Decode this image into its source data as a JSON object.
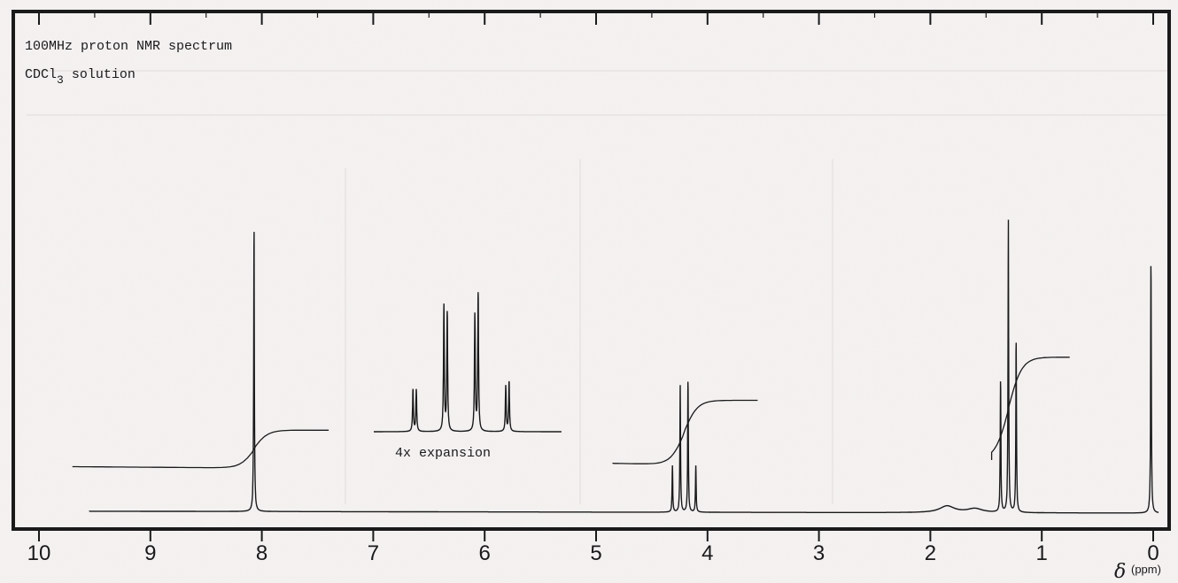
{
  "chart_data": {
    "type": "line",
    "title_line1": "100MHz proton NMR spectrum",
    "title_line2_prefix": "CDCl",
    "title_line2_subscript": "3",
    "title_line2_suffix": " solution",
    "inset_label": "4x expansion",
    "xlabel_symbol": "δ",
    "xlabel_unit": "(ppm)",
    "x_reversed": true,
    "xlim": [
      10,
      0
    ],
    "x_ticks": [
      10,
      9,
      8,
      7,
      6,
      5,
      4,
      3,
      2,
      1,
      0
    ],
    "x_tick_labels": [
      "10",
      "9",
      "8",
      "7",
      "6",
      "5",
      "4",
      "3",
      "2",
      "1",
      "0"
    ],
    "grid": false,
    "peaks": [
      {
        "shift": 8.07,
        "height": 0.86,
        "multiplicity": "singlet"
      },
      {
        "shift": 4.315,
        "height": 0.14,
        "multiplicity": "quartet"
      },
      {
        "shift": 4.245,
        "height": 0.39,
        "multiplicity": "quartet"
      },
      {
        "shift": 4.175,
        "height": 0.4,
        "multiplicity": "quartet"
      },
      {
        "shift": 4.105,
        "height": 0.14,
        "multiplicity": "quartet"
      },
      {
        "shift": 1.37,
        "height": 0.4,
        "multiplicity": "triplet"
      },
      {
        "shift": 1.3,
        "height": 0.88,
        "multiplicity": "triplet"
      },
      {
        "shift": 1.23,
        "height": 0.52,
        "multiplicity": "triplet"
      },
      {
        "shift": 0.02,
        "height": 0.76,
        "multiplicity": "singlet"
      }
    ],
    "broad_bumps": [
      {
        "shift": 1.85,
        "height": 0.02
      },
      {
        "shift": 1.6,
        "height": 0.012
      }
    ],
    "integrals": [
      {
        "from": 9.7,
        "to": 7.4,
        "center": 8.07,
        "start_level": 0.14,
        "end_level": 0.25
      },
      {
        "from": 4.85,
        "to": 3.55,
        "center": 4.21,
        "start_level": 0.15,
        "end_level": 0.34
      },
      {
        "from": 1.45,
        "to": 0.75,
        "center": 1.3,
        "start_level": 0.16,
        "end_level": 0.47
      }
    ],
    "inset": {
      "description_label_key": "inset_label",
      "x_range": [
        7.0,
        5.3
      ],
      "peaks": [
        {
          "shift": 6.645,
          "height": 0.22
        },
        {
          "shift": 6.615,
          "height": 0.22
        },
        {
          "shift": 6.365,
          "height": 0.66
        },
        {
          "shift": 6.335,
          "height": 0.62
        },
        {
          "shift": 6.085,
          "height": 0.61
        },
        {
          "shift": 6.055,
          "height": 0.72
        },
        {
          "shift": 5.805,
          "height": 0.24
        },
        {
          "shift": 5.775,
          "height": 0.26
        }
      ]
    }
  }
}
